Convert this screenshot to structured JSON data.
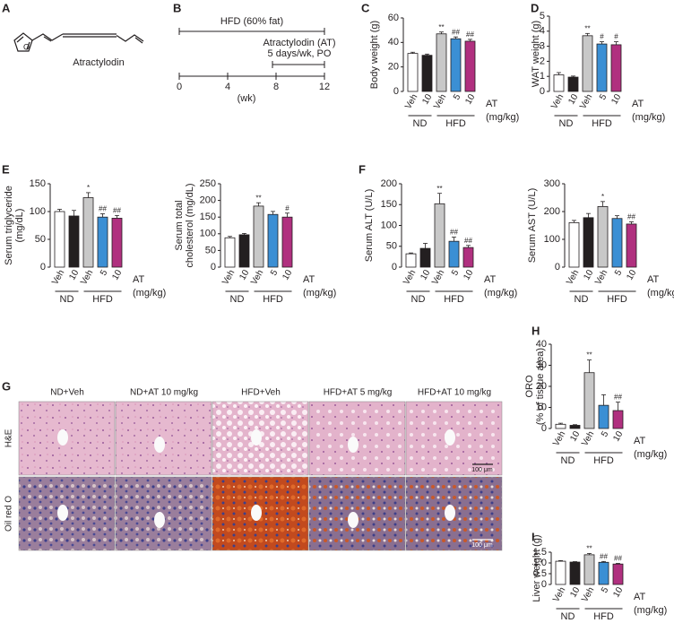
{
  "structure": {
    "letter": "A",
    "name": "Atractylodin"
  },
  "timeline": {
    "letter": "B",
    "diet": "HFD (60% fat)",
    "treatment": "Atractylodin (AT)",
    "schedule": "5 days/wk, PO",
    "ticks": [
      0,
      4,
      8,
      12
    ],
    "unit": "(wk)"
  },
  "chart_data": [
    {
      "type": "bar",
      "panel": "C",
      "ylabel": [
        "Body weight (g)"
      ],
      "categories": [
        "Veh",
        "10",
        "Veh",
        "5",
        "10"
      ],
      "groups": [
        "ND",
        "HFD"
      ],
      "dose_label": "AT",
      "dose_unit": "(mg/kg)",
      "values": [
        31,
        29.5,
        47,
        43,
        41
      ],
      "errors": [
        1,
        1,
        1.5,
        1.5,
        1.5
      ],
      "sig_labels": [
        null,
        null,
        "**",
        "##",
        "##"
      ],
      "colors": [
        "#ffffff",
        "#231f20",
        "#c8c8c8",
        "#3b8fd4",
        "#b0307f"
      ],
      "ylim": [
        0,
        60
      ],
      "yticks": [
        0,
        20,
        40,
        60
      ]
    },
    {
      "type": "bar",
      "panel": "D",
      "ylabel": [
        "WAT weight (g)"
      ],
      "categories": [
        "Veh",
        "10",
        "Veh",
        "5",
        "10"
      ],
      "groups": [
        "ND",
        "HFD"
      ],
      "dose_label": "AT",
      "dose_unit": "(mg/kg)",
      "values": [
        1.1,
        0.95,
        3.7,
        3.15,
        3.1
      ],
      "errors": [
        0.15,
        0.07,
        0.15,
        0.15,
        0.2
      ],
      "sig_labels": [
        null,
        null,
        "**",
        "#",
        "#"
      ],
      "colors": [
        "#ffffff",
        "#231f20",
        "#c8c8c8",
        "#3b8fd4",
        "#b0307f"
      ],
      "ylim": [
        0,
        5
      ],
      "yticks": [
        0,
        1,
        2,
        3,
        4,
        5
      ]
    },
    {
      "type": "bar",
      "panel": "E",
      "ylabel": [
        "Serum triglyceride",
        "(mg/dL)"
      ],
      "categories": [
        "Veh",
        "10",
        "Veh",
        "5",
        "10"
      ],
      "groups": [
        "ND",
        "HFD"
      ],
      "dose_label": "AT",
      "dose_unit": "(mg/kg)",
      "values": [
        100,
        92,
        125,
        90,
        88
      ],
      "errors": [
        4,
        10,
        9,
        6,
        5
      ],
      "sig_labels": [
        null,
        null,
        "*",
        "##",
        "##"
      ],
      "colors": [
        "#ffffff",
        "#231f20",
        "#c8c8c8",
        "#3b8fd4",
        "#b0307f"
      ],
      "ylim": [
        0,
        150
      ],
      "yticks": [
        0,
        50,
        100,
        150
      ]
    },
    {
      "type": "bar",
      "ylabel": [
        "Serum total",
        "cholesterol (mg/dL)"
      ],
      "categories": [
        "Veh",
        "10",
        "Veh",
        "5",
        "10"
      ],
      "groups": [
        "ND",
        "HFD"
      ],
      "dose_label": "AT",
      "dose_unit": "(mg/kg)",
      "values": [
        88,
        97,
        183,
        158,
        150
      ],
      "errors": [
        4,
        4,
        10,
        9,
        12
      ],
      "sig_labels": [
        null,
        null,
        "**",
        null,
        "#"
      ],
      "colors": [
        "#ffffff",
        "#231f20",
        "#c8c8c8",
        "#3b8fd4",
        "#b0307f"
      ],
      "ylim": [
        0,
        250
      ],
      "yticks": [
        0,
        50,
        100,
        150,
        200,
        250
      ]
    },
    {
      "type": "bar",
      "panel": "F",
      "ylabel": [
        "Serum ALT (U/L)"
      ],
      "categories": [
        "Veh",
        "10",
        "Veh",
        "5",
        "10"
      ],
      "groups": [
        "ND",
        "HFD"
      ],
      "dose_label": "AT",
      "dose_unit": "(mg/kg)",
      "values": [
        32,
        45,
        152,
        62,
        47
      ],
      "errors": [
        2,
        12,
        25,
        10,
        5
      ],
      "sig_labels": [
        null,
        null,
        "**",
        "##",
        "##"
      ],
      "colors": [
        "#ffffff",
        "#231f20",
        "#c8c8c8",
        "#3b8fd4",
        "#b0307f"
      ],
      "ylim": [
        0,
        200
      ],
      "yticks": [
        0,
        50,
        100,
        150,
        200
      ]
    },
    {
      "type": "bar",
      "ylabel": [
        "Serum AST (U/L)"
      ],
      "categories": [
        "Veh",
        "10",
        "Veh",
        "5",
        "10"
      ],
      "groups": [
        "ND",
        "HFD"
      ],
      "dose_label": "AT",
      "dose_unit": "(mg/kg)",
      "values": [
        160,
        178,
        218,
        175,
        155
      ],
      "errors": [
        8,
        15,
        18,
        10,
        8
      ],
      "sig_labels": [
        null,
        null,
        "*",
        null,
        "##"
      ],
      "colors": [
        "#ffffff",
        "#231f20",
        "#c8c8c8",
        "#3b8fd4",
        "#b0307f"
      ],
      "ylim": [
        0,
        300
      ],
      "yticks": [
        0,
        100,
        200,
        300
      ]
    },
    {
      "type": "bar",
      "panel": "H",
      "ylabel": [
        "ORO",
        "(% of tissue area)"
      ],
      "categories": [
        "Veh",
        "10",
        "Veh",
        "5",
        "10"
      ],
      "groups": [
        "ND",
        "HFD"
      ],
      "dose_label": "AT",
      "dose_unit": "(mg/kg)",
      "values": [
        2,
        1.5,
        26.5,
        11,
        8.5
      ],
      "errors": [
        0.5,
        0.3,
        6,
        5,
        4
      ],
      "sig_labels": [
        null,
        null,
        "**",
        null,
        "##"
      ],
      "colors": [
        "#ffffff",
        "#231f20",
        "#c8c8c8",
        "#3b8fd4",
        "#b0307f"
      ],
      "ylim": [
        0,
        40
      ],
      "yticks": [
        0,
        10,
        20,
        30,
        40
      ]
    },
    {
      "type": "bar",
      "panel": "I",
      "ylabel": [
        "Liver weight (g)"
      ],
      "categories": [
        "Veh",
        "10",
        "Veh",
        "5",
        "10"
      ],
      "groups": [
        "ND",
        "HFD"
      ],
      "dose_label": "AT",
      "dose_unit": "(mg/kg)",
      "values": [
        1.08,
        1.04,
        1.38,
        1.03,
        0.95
      ],
      "errors": [
        0.03,
        0.02,
        0.06,
        0.04,
        0.03
      ],
      "sig_labels": [
        null,
        null,
        "**",
        "##",
        "##"
      ],
      "colors": [
        "#ffffff",
        "#231f20",
        "#c8c8c8",
        "#3b8fd4",
        "#b0307f"
      ],
      "ylim": [
        0,
        1.5
      ],
      "yticks": [
        0,
        0.5,
        {
          "value": 1,
          "label": "1.0"
        },
        1.5
      ]
    }
  ],
  "histology": {
    "letter": "G",
    "columns": [
      "ND+Veh",
      "ND+AT 10 mg/kg",
      "HFD+Veh",
      "HFD+AT 5 mg/kg",
      "HFD+AT 10 mg/kg"
    ],
    "rows": [
      "H&E",
      "Oil red O"
    ],
    "scale_bars": [
      "100 μm",
      "100 μm"
    ]
  }
}
